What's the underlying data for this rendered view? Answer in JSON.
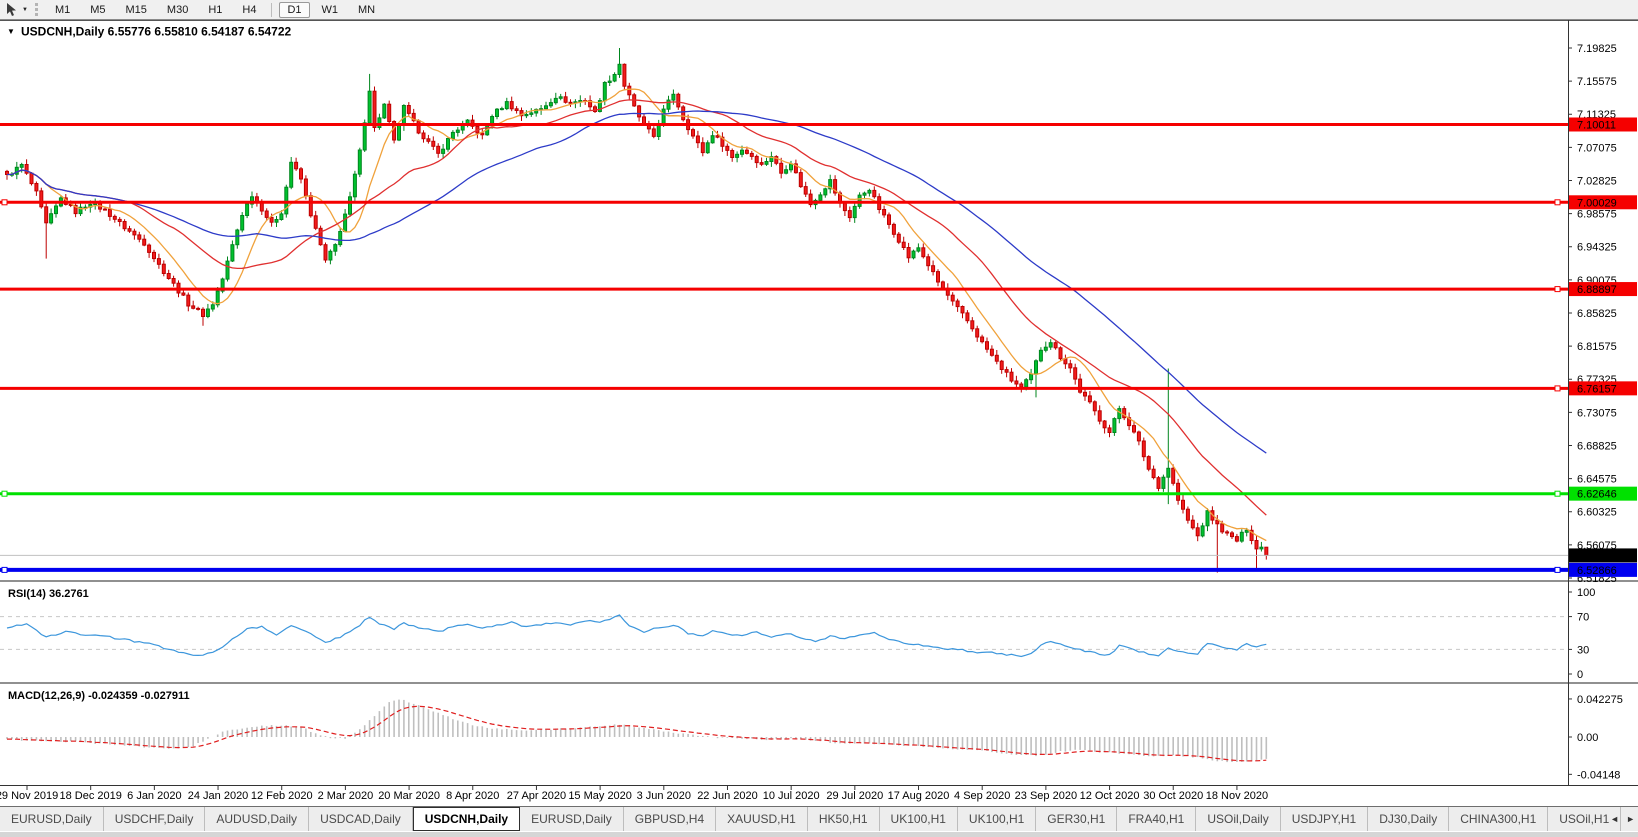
{
  "window": {
    "toolbar": {
      "timeframes": [
        "M1",
        "M5",
        "M15",
        "M30",
        "H1",
        "H4",
        "D1",
        "W1",
        "MN"
      ],
      "selected_timeframe": "D1"
    },
    "icons": {
      "collapse": "▼",
      "dropdown": "▼",
      "scroll_left": "◄",
      "scroll_right": "►"
    },
    "tabs": {
      "items": [
        "EURUSD,Daily",
        "USDCHF,Daily",
        "AUDUSD,Daily",
        "USDCAD,Daily",
        "USDCNH,Daily",
        "EURUSD,Daily",
        "GBPUSD,H4",
        "XAUUSD,H1",
        "HK50,H1",
        "UK100,H1",
        "UK100,H1",
        "GER30,H1",
        "FRA40,H1",
        "USOil,Daily",
        "USDJPY,H1",
        "DJ30,Daily",
        "CHINA300,H1",
        "USOil,H1"
      ],
      "active": "USDCNH,Daily",
      "active_index": 4
    }
  },
  "chart_data": {
    "type": "candlestick",
    "symbol": "USDCNH,Daily",
    "title_text": "USDCNH,Daily  6.55776 6.55810 6.54187 6.54722",
    "ohlc": {
      "open": "6.55776",
      "high": "6.55810",
      "low": "6.54187",
      "close": "6.54722"
    },
    "last_close": 6.54722,
    "bars_count": 258,
    "y_axis": {
      "min": 6.51825,
      "max": 7.19825,
      "tick_step": 0.0425,
      "ticks": [
        "7.19825",
        "7.15575",
        "7.11325",
        "7.07075",
        "7.02825",
        "6.98575",
        "6.94325",
        "6.90075",
        "6.85825",
        "6.81575",
        "6.77325",
        "6.73075",
        "6.68825",
        "6.64575",
        "6.60325",
        "6.56075",
        "6.51825"
      ]
    },
    "x_axis": {
      "labels": [
        "29 Nov 2019",
        "18 Dec 2019",
        "6 Jan 2020",
        "24 Jan 2020",
        "12 Feb 2020",
        "2 Mar 2020",
        "20 Mar 2020",
        "8 Apr 2020",
        "27 Apr 2020",
        "15 May 2020",
        "3 Jun 2020",
        "22 Jun 2020",
        "10 Jul 2020",
        "29 Jul 2020",
        "17 Aug 2020",
        "4 Sep 2020",
        "23 Sep 2020",
        "12 Oct 2020",
        "30 Oct 2020",
        "18 Nov 2020"
      ]
    },
    "horizontal_lines": [
      {
        "price": 7.10011,
        "label": "7.10011",
        "color": "#f50000",
        "width": 3,
        "badge_bg": "#f50000",
        "badge_fg": "#ffffff",
        "handle": false,
        "left_handle": false
      },
      {
        "price": 7.00029,
        "label": "7.00029",
        "color": "#f50000",
        "width": 3,
        "badge_bg": "#f50000",
        "badge_fg": "#ffffff",
        "handle": true,
        "left_handle": true
      },
      {
        "price": 6.88897,
        "label": "6.88897",
        "color": "#f50000",
        "width": 3,
        "badge_bg": "#f50000",
        "badge_fg": "#ffffff",
        "handle": true,
        "left_handle": false
      },
      {
        "price": 6.76157,
        "label": "6.76157",
        "color": "#f50000",
        "width": 3,
        "badge_bg": "#f50000",
        "badge_fg": "#ffffff",
        "handle": true,
        "left_handle": false
      },
      {
        "price": 6.62646,
        "label": "6.62646",
        "color": "#00e100",
        "width": 3,
        "badge_bg": "#00e100",
        "badge_fg": "#000000",
        "handle": true,
        "left_handle": true
      },
      {
        "price": 6.54722,
        "label": "6.54722",
        "color": "#c0c0c0",
        "width": 1,
        "badge_bg": "#000000",
        "badge_fg": "#ffffff",
        "handle": false,
        "left_handle": false
      },
      {
        "price": 6.52866,
        "label": "6.52866",
        "color": "#0000f0",
        "width": 4,
        "badge_bg": "#0000f0",
        "badge_fg": "#ffffff",
        "handle": true,
        "left_handle": true
      }
    ],
    "moving_averages": [
      {
        "period": 9,
        "color": "#f0a23c"
      },
      {
        "period": 26,
        "color": "#e03030"
      },
      {
        "period": 52,
        "color": "#2d3bc8"
      }
    ],
    "colors": {
      "bull": "#00c22e",
      "bull_border": "#00861e",
      "bear": "#f21c1c",
      "bear_border": "#bd0000",
      "rsi_line": "#3c96dc",
      "rsi_levels": "#c8c8c8",
      "macd_bars": "#bfbfbf",
      "macd_signal": "#e02020"
    },
    "price_keypoints": [
      [
        0,
        7.034
      ],
      [
        3,
        7.048
      ],
      [
        6,
        7.012
      ],
      [
        8,
        6.972
      ],
      [
        11,
        7.005
      ],
      [
        14,
        6.988
      ],
      [
        17,
        7.0
      ],
      [
        20,
        6.99
      ],
      [
        24,
        6.968
      ],
      [
        28,
        6.948
      ],
      [
        31,
        6.92
      ],
      [
        34,
        6.895
      ],
      [
        37,
        6.87
      ],
      [
        40,
        6.856
      ],
      [
        42,
        6.87
      ],
      [
        44,
        6.902
      ],
      [
        46,
        6.945
      ],
      [
        48,
        6.985
      ],
      [
        50,
        7.01
      ],
      [
        52,
        6.992
      ],
      [
        54,
        6.972
      ],
      [
        56,
        6.988
      ],
      [
        58,
        7.052
      ],
      [
        60,
        7.03
      ],
      [
        62,
        6.985
      ],
      [
        65,
        6.925
      ],
      [
        67,
        6.945
      ],
      [
        70,
        7.005
      ],
      [
        72,
        7.065
      ],
      [
        74,
        7.145
      ],
      [
        75,
        7.095
      ],
      [
        77,
        7.125
      ],
      [
        79,
        7.078
      ],
      [
        81,
        7.122
      ],
      [
        84,
        7.092
      ],
      [
        88,
        7.062
      ],
      [
        91,
        7.09
      ],
      [
        94,
        7.103
      ],
      [
        97,
        7.085
      ],
      [
        99,
        7.112
      ],
      [
        102,
        7.128
      ],
      [
        105,
        7.112
      ],
      [
        109,
        7.12
      ],
      [
        112,
        7.136
      ],
      [
        115,
        7.128
      ],
      [
        118,
        7.132
      ],
      [
        120,
        7.115
      ],
      [
        122,
        7.152
      ],
      [
        124,
        7.165
      ],
      [
        125,
        7.178
      ],
      [
        126,
        7.15
      ],
      [
        128,
        7.122
      ],
      [
        130,
        7.098
      ],
      [
        132,
        7.085
      ],
      [
        134,
        7.118
      ],
      [
        136,
        7.14
      ],
      [
        138,
        7.108
      ],
      [
        140,
        7.085
      ],
      [
        142,
        7.065
      ],
      [
        144,
        7.088
      ],
      [
        146,
        7.075
      ],
      [
        148,
        7.058
      ],
      [
        150,
        7.068
      ],
      [
        152,
        7.06
      ],
      [
        154,
        7.048
      ],
      [
        156,
        7.06
      ],
      [
        158,
        7.038
      ],
      [
        160,
        7.052
      ],
      [
        162,
        7.022
      ],
      [
        164,
        6.998
      ],
      [
        166,
        7.012
      ],
      [
        168,
        7.028
      ],
      [
        170,
        6.998
      ],
      [
        172,
        6.982
      ],
      [
        174,
        7.008
      ],
      [
        176,
        7.018
      ],
      [
        178,
        6.992
      ],
      [
        180,
        6.972
      ],
      [
        182,
        6.952
      ],
      [
        184,
        6.93
      ],
      [
        186,
        6.942
      ],
      [
        188,
        6.92
      ],
      [
        190,
        6.898
      ],
      [
        193,
        6.872
      ],
      [
        196,
        6.848
      ],
      [
        199,
        6.82
      ],
      [
        202,
        6.795
      ],
      [
        205,
        6.772
      ],
      [
        207,
        6.762
      ],
      [
        209,
        6.778
      ],
      [
        211,
        6.812
      ],
      [
        213,
        6.822
      ],
      [
        215,
        6.802
      ],
      [
        217,
        6.788
      ],
      [
        219,
        6.758
      ],
      [
        221,
        6.742
      ],
      [
        223,
        6.722
      ],
      [
        225,
        6.705
      ],
      [
        227,
        6.736
      ],
      [
        229,
        6.716
      ],
      [
        231,
        6.692
      ],
      [
        233,
        6.658
      ],
      [
        235,
        6.636
      ],
      [
        237,
        6.66
      ],
      [
        239,
        6.618
      ],
      [
        241,
        6.592
      ],
      [
        243,
        6.572
      ],
      [
        245,
        6.602
      ],
      [
        247,
        6.586
      ],
      [
        249,
        6.574
      ],
      [
        251,
        6.566
      ],
      [
        253,
        6.582
      ],
      [
        255,
        6.556
      ],
      [
        257,
        6.54722
      ]
    ],
    "wick_overrides": [
      {
        "i": 8,
        "low": 6.928
      },
      {
        "i": 40,
        "low": 6.842
      },
      {
        "i": 74,
        "high": 7.165
      },
      {
        "i": 125,
        "high": 7.1982
      },
      {
        "i": 210,
        "low": 6.75
      },
      {
        "i": 237,
        "high": 6.787,
        "low": 6.613
      },
      {
        "i": 247,
        "low": 6.5252
      },
      {
        "i": 255,
        "low": 6.53
      },
      {
        "i": 257,
        "high": 6.5581,
        "low": 6.5419
      }
    ],
    "indicators": {
      "rsi": {
        "label": "RSI(14) 36.2761",
        "period": 14,
        "value": 36.2761,
        "levels": [
          70,
          30
        ],
        "axis": [
          "100",
          "70",
          "30",
          "0"
        ],
        "keypoints": [
          [
            0,
            55
          ],
          [
            4,
            62
          ],
          [
            8,
            45
          ],
          [
            12,
            52
          ],
          [
            16,
            48
          ],
          [
            20,
            46
          ],
          [
            24,
            42
          ],
          [
            28,
            38
          ],
          [
            32,
            32
          ],
          [
            36,
            26
          ],
          [
            40,
            22
          ],
          [
            43,
            30
          ],
          [
            46,
            42
          ],
          [
            49,
            55
          ],
          [
            52,
            58
          ],
          [
            55,
            48
          ],
          [
            58,
            60
          ],
          [
            61,
            52
          ],
          [
            65,
            38
          ],
          [
            68,
            45
          ],
          [
            71,
            55
          ],
          [
            74,
            70
          ],
          [
            76,
            62
          ],
          [
            79,
            55
          ],
          [
            81,
            62
          ],
          [
            84,
            57
          ],
          [
            88,
            52
          ],
          [
            91,
            57
          ],
          [
            94,
            60
          ],
          [
            97,
            55
          ],
          [
            100,
            60
          ],
          [
            103,
            63
          ],
          [
            106,
            58
          ],
          [
            109,
            60
          ],
          [
            112,
            63
          ],
          [
            115,
            60
          ],
          [
            118,
            65
          ],
          [
            121,
            62
          ],
          [
            125,
            72
          ],
          [
            127,
            60
          ],
          [
            130,
            52
          ],
          [
            133,
            56
          ],
          [
            136,
            60
          ],
          [
            139,
            50
          ],
          [
            142,
            46
          ],
          [
            144,
            52
          ],
          [
            147,
            50
          ],
          [
            150,
            46
          ],
          [
            153,
            52
          ],
          [
            156,
            44
          ],
          [
            159,
            50
          ],
          [
            162,
            44
          ],
          [
            165,
            40
          ],
          [
            168,
            46
          ],
          [
            171,
            42
          ],
          [
            174,
            48
          ],
          [
            177,
            50
          ],
          [
            180,
            42
          ],
          [
            183,
            38
          ],
          [
            186,
            36
          ],
          [
            189,
            33
          ],
          [
            192,
            31
          ],
          [
            195,
            29
          ],
          [
            198,
            27
          ],
          [
            201,
            26
          ],
          [
            204,
            24
          ],
          [
            207,
            22
          ],
          [
            209,
            25
          ],
          [
            211,
            35
          ],
          [
            213,
            40
          ],
          [
            215,
            36
          ],
          [
            217,
            33
          ],
          [
            219,
            29
          ],
          [
            221,
            27
          ],
          [
            223,
            25
          ],
          [
            225,
            23
          ],
          [
            227,
            35
          ],
          [
            229,
            31
          ],
          [
            231,
            28
          ],
          [
            233,
            25
          ],
          [
            235,
            23
          ],
          [
            237,
            32
          ],
          [
            239,
            28
          ],
          [
            241,
            25
          ],
          [
            243,
            24
          ],
          [
            245,
            38
          ],
          [
            247,
            34
          ],
          [
            249,
            32
          ],
          [
            251,
            30
          ],
          [
            253,
            38
          ],
          [
            255,
            32
          ],
          [
            257,
            36.2761
          ]
        ]
      },
      "macd": {
        "label": "MACD(12,26,9) -0.024359 -0.027911",
        "params": "12,26,9",
        "macd_value": -0.024359,
        "signal_value": -0.027911,
        "axis": [
          {
            "v": 0.042275,
            "t": "0.042275"
          },
          {
            "v": 0,
            "t": "0.00"
          },
          {
            "v": -0.04148,
            "t": "-0.04148"
          }
        ],
        "keypoints": [
          [
            0,
            -0.003
          ],
          [
            6,
            -0.004
          ],
          [
            12,
            -0.005
          ],
          [
            18,
            -0.007
          ],
          [
            24,
            -0.009
          ],
          [
            30,
            -0.012
          ],
          [
            34,
            -0.013
          ],
          [
            38,
            -0.01
          ],
          [
            41,
            -0.002
          ],
          [
            44,
            0.006
          ],
          [
            48,
            0.01
          ],
          [
            52,
            0.012
          ],
          [
            56,
            0.013
          ],
          [
            60,
            0.011
          ],
          [
            63,
            0.004
          ],
          [
            66,
            -0.001
          ],
          [
            69,
            -0.002
          ],
          [
            72,
            0.008
          ],
          [
            75,
            0.024
          ],
          [
            78,
            0.038
          ],
          [
            80,
            0.042
          ],
          [
            82,
            0.039
          ],
          [
            85,
            0.033
          ],
          [
            88,
            0.027
          ],
          [
            92,
            0.018
          ],
          [
            96,
            0.012
          ],
          [
            100,
            0.009
          ],
          [
            105,
            0.007
          ],
          [
            110,
            0.008
          ],
          [
            115,
            0.01
          ],
          [
            120,
            0.012
          ],
          [
            125,
            0.014
          ],
          [
            130,
            0.01
          ],
          [
            135,
            0.006
          ],
          [
            140,
            0.002
          ],
          [
            145,
            -0.001
          ],
          [
            150,
            -0.002
          ],
          [
            155,
            -0.003
          ],
          [
            160,
            -0.002
          ],
          [
            165,
            -0.004
          ],
          [
            170,
            -0.007
          ],
          [
            175,
            -0.007
          ],
          [
            180,
            -0.008
          ],
          [
            185,
            -0.01
          ],
          [
            190,
            -0.012
          ],
          [
            195,
            -0.014
          ],
          [
            200,
            -0.016
          ],
          [
            205,
            -0.019
          ],
          [
            210,
            -0.021
          ],
          [
            214,
            -0.017
          ],
          [
            218,
            -0.014
          ],
          [
            222,
            -0.016
          ],
          [
            226,
            -0.018
          ],
          [
            230,
            -0.02
          ],
          [
            234,
            -0.022
          ],
          [
            238,
            -0.02
          ],
          [
            242,
            -0.022
          ],
          [
            246,
            -0.026
          ],
          [
            250,
            -0.028
          ],
          [
            253,
            -0.028
          ],
          [
            257,
            -0.024359
          ]
        ]
      }
    }
  }
}
